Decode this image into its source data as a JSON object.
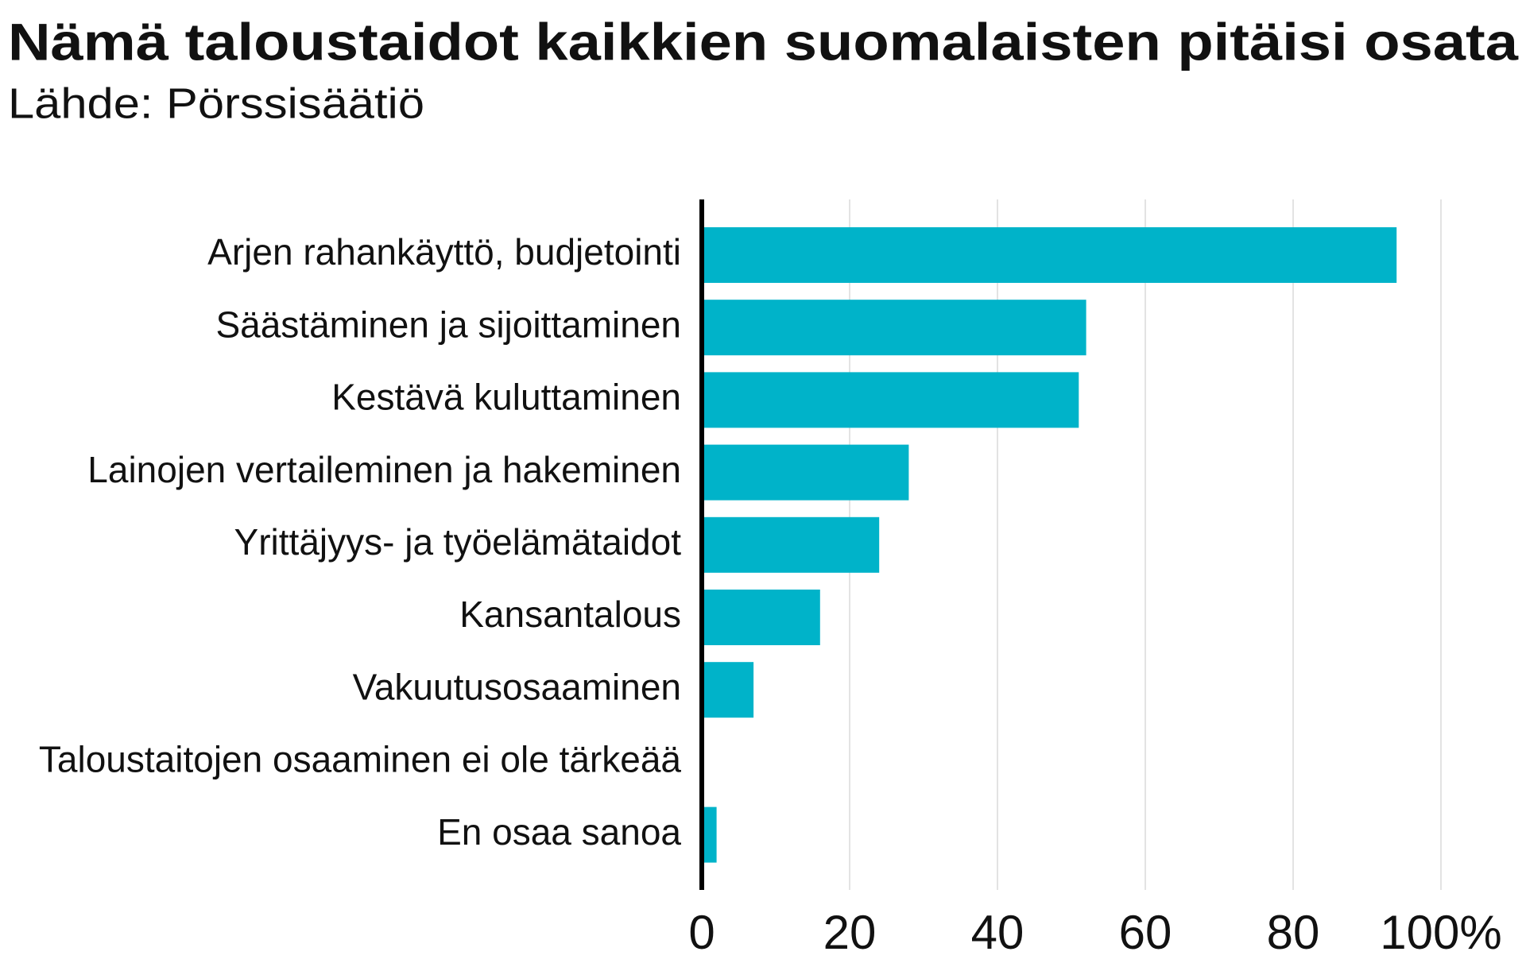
{
  "chart_data": {
    "type": "bar",
    "orientation": "horizontal",
    "title": "Nämä taloustaidot kaikkien suomalaisten pitäisi osata",
    "subtitle": "Lähde: Pörssisäätiö",
    "categories": [
      "Arjen rahankäyttö, budjetointi",
      "Säästäminen ja sijoittaminen",
      "Kestävä kuluttaminen",
      "Lainojen vertaileminen ja hakeminen",
      "Yrittäjyys- ja työelämätaidot",
      "Kansantalous",
      "Vakuutusosaaminen",
      "Taloustaitojen osaaminen ei ole tärkeää",
      "En osaa sanoa"
    ],
    "values": [
      94,
      52,
      51,
      28,
      24,
      16,
      7,
      0,
      2
    ],
    "color": "#00b3c9",
    "xlim": [
      0,
      100
    ],
    "xticks": [
      0,
      20,
      40,
      60,
      80,
      {
        "value": 100,
        "label": "100%"
      }
    ],
    "grid": true
  }
}
